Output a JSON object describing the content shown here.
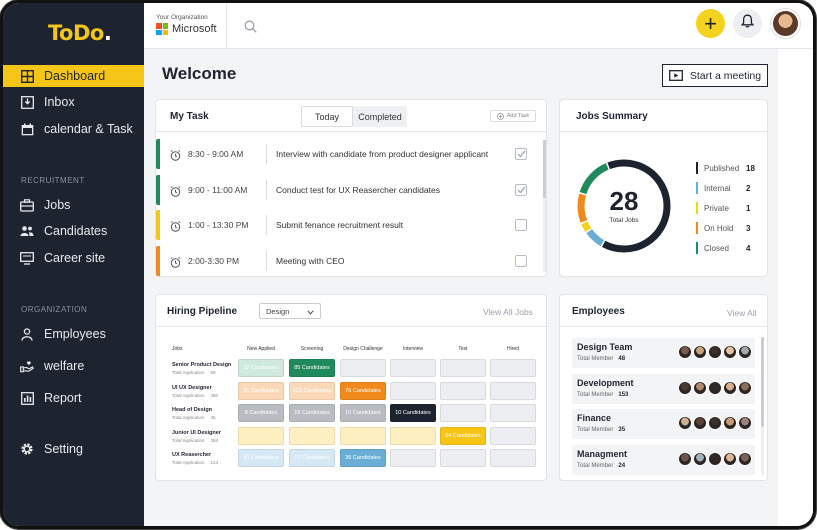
{
  "app": {
    "logo_text": "ToDo",
    "logo_dot": "."
  },
  "sidebar": {
    "items_main": [
      {
        "label": "Dashboard",
        "icon": "grid-icon"
      },
      {
        "label": "Inbox",
        "icon": "inbox-icon"
      },
      {
        "label": "calendar & Task",
        "icon": "calendar-icon"
      }
    ],
    "section_recruitment": "RECRUITMENT",
    "items_recruitment": [
      {
        "label": "Jobs",
        "icon": "briefcase-icon"
      },
      {
        "label": "Candidates",
        "icon": "people-icon"
      },
      {
        "label": "Career site",
        "icon": "monitor-icon"
      }
    ],
    "section_organization": "ORGANIZATION",
    "items_organization": [
      {
        "label": "Employees",
        "icon": "person-icon"
      },
      {
        "label": "welfare",
        "icon": "hand-icon"
      },
      {
        "label": "Report",
        "icon": "chart-icon"
      }
    ],
    "setting_label": "Setting"
  },
  "topbar": {
    "org_label": "Your Organization",
    "org_name": "Microsoft",
    "add_label": "+"
  },
  "main": {
    "welcome": "Welcome",
    "meeting_button": "Start a meeting"
  },
  "mytask": {
    "title": "My Task",
    "tabs": [
      "Today",
      "Completed"
    ],
    "add_task": "Add Task",
    "tasks": [
      {
        "time": "8:30 - 9:00 AM",
        "text": "Interview with candidate from product designer applicant",
        "color": "#1f8a5b",
        "checked": true
      },
      {
        "time": "9:00 - 11:00 AM",
        "text": "Conduct test for UX Reasercher candidates",
        "color": "#1f8a5b",
        "checked": true
      },
      {
        "time": "1:00 - 13:30 PM",
        "text": "Submit fenance recruitment result",
        "color": "#f5c518",
        "checked": false
      },
      {
        "time": "2:00-3:30 PM",
        "text": "Meeting with CEO",
        "color": "#f08a1c",
        "checked": false
      }
    ]
  },
  "jobs_summary": {
    "title": "Jobs Summary",
    "total": "28",
    "total_label": "Total Jobs",
    "items": [
      {
        "name": "Published",
        "value": "18",
        "color": "#1e2330"
      },
      {
        "name": "Internal",
        "value": "2",
        "color": "#6aaed6"
      },
      {
        "name": "Private",
        "value": "1",
        "color": "#f5d21e"
      },
      {
        "name": "On Hold",
        "value": "3",
        "color": "#f08a1c"
      },
      {
        "name": "Closed",
        "value": "4",
        "color": "#1f8a5b"
      }
    ]
  },
  "hiring": {
    "title": "Hiring Pipeline",
    "select_value": "Design",
    "view_all": "View All Jobs",
    "columns": [
      "Jobs",
      "New Applied",
      "Screening",
      "Design Challenge",
      "Interview",
      "Test",
      "Hired"
    ],
    "rows": [
      {
        "name": "Senior Product Design",
        "sub_label": "Total Application",
        "sub_value": "59",
        "cells": [
          {
            "text": "32 Candidates",
            "bg": "#cfe9dc",
            "fg": "#ffffff"
          },
          {
            "text": "85 Candidates",
            "bg": "#1f8a5b",
            "fg": "#ffffff"
          },
          {
            "text": "",
            "bg": "#eceef1",
            "fg": "#fff"
          },
          {
            "text": "",
            "bg": "#eceef1",
            "fg": "#fff"
          },
          {
            "text": "",
            "bg": "#eceef1",
            "fg": "#fff"
          },
          {
            "text": "",
            "bg": "#eceef1",
            "fg": "#fff"
          }
        ]
      },
      {
        "name": "UI UX Designer",
        "sub_label": "Total Application",
        "sub_value": "450",
        "cells": [
          {
            "text": "35 Candidates",
            "bg": "#fbd9b8",
            "fg": "#ffffff"
          },
          {
            "text": "121 Candidates",
            "bg": "#fbd9b8",
            "fg": "#ffffff"
          },
          {
            "text": "76 Candidates",
            "bg": "#f08a1c",
            "fg": "#ffffff"
          },
          {
            "text": "",
            "bg": "#eceef1",
            "fg": "#fff"
          },
          {
            "text": "",
            "bg": "#eceef1",
            "fg": "#fff"
          },
          {
            "text": "",
            "bg": "#eceef1",
            "fg": "#fff"
          }
        ]
      },
      {
        "name": "Head of Design",
        "sub_label": "Total Application",
        "sub_value": "45",
        "cells": [
          {
            "text": "8 Candidates",
            "bg": "#b9bcc2",
            "fg": "#ffffff"
          },
          {
            "text": "15 Candidates",
            "bg": "#b9bcc2",
            "fg": "#ffffff"
          },
          {
            "text": "10 Candidates",
            "bg": "#b9bcc2",
            "fg": "#ffffff"
          },
          {
            "text": "10 Candidates",
            "bg": "#1e2330",
            "fg": "#ffffff"
          },
          {
            "text": "",
            "bg": "#eceef1",
            "fg": "#fff"
          },
          {
            "text": "",
            "bg": "#eceef1",
            "fg": "#fff"
          }
        ]
      },
      {
        "name": "Junior UI Designer",
        "sub_label": "Total Application",
        "sub_value": "358",
        "cells": [
          {
            "text": "",
            "bg": "#fdefbf",
            "fg": "#ffffff"
          },
          {
            "text": "",
            "bg": "#fdefbf",
            "fg": "#ffffff"
          },
          {
            "text": "",
            "bg": "#fdefbf",
            "fg": "#ffffff"
          },
          {
            "text": "",
            "bg": "#fdefbf",
            "fg": "#ffffff"
          },
          {
            "text": "54 Candidates",
            "bg": "#f5c518",
            "fg": "#ffffff"
          },
          {
            "text": "",
            "bg": "#eceef1",
            "fg": "#fff"
          }
        ]
      },
      {
        "name": "UX Reasercher",
        "sub_label": "Total Application",
        "sub_value": "124",
        "cells": [
          {
            "text": "50 Candidates",
            "bg": "#d6e8f4",
            "fg": "#ffffff"
          },
          {
            "text": "72 Candidates",
            "bg": "#d6e8f4",
            "fg": "#ffffff"
          },
          {
            "text": "36 Candidates",
            "bg": "#6aaed6",
            "fg": "#ffffff"
          },
          {
            "text": "",
            "bg": "#eceef1",
            "fg": "#fff"
          },
          {
            "text": "",
            "bg": "#eceef1",
            "fg": "#fff"
          },
          {
            "text": "",
            "bg": "#eceef1",
            "fg": "#fff"
          }
        ]
      }
    ]
  },
  "employees": {
    "title": "Employees",
    "view_all": "View All",
    "teams": [
      {
        "name": "Design Team",
        "sub_label": "Total Member",
        "count": "48"
      },
      {
        "name": "Development",
        "sub_label": "Total Member",
        "count": "153"
      },
      {
        "name": "Finance",
        "sub_label": "Total Member",
        "count": "35"
      },
      {
        "name": "Managment",
        "sub_label": "Total Member",
        "count": "24"
      }
    ]
  }
}
